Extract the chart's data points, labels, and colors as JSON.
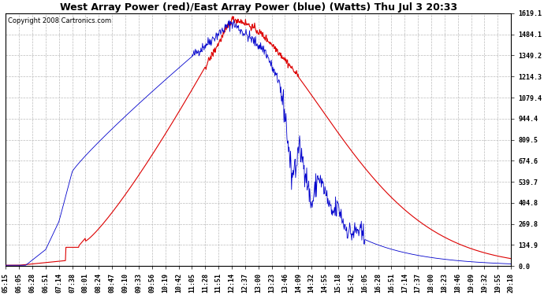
{
  "title": "West Array Power (red)/East Array Power (blue) (Watts) Thu Jul 3 20:33",
  "copyright": "Copyright 2008 Cartronics.com",
  "ymax": 1619.1,
  "yticks": [
    0.0,
    134.9,
    269.8,
    404.8,
    539.7,
    674.6,
    809.5,
    944.4,
    1079.4,
    1214.3,
    1349.2,
    1484.1,
    1619.1
  ],
  "ytick_labels": [
    "0.0",
    "134.9",
    "269.8",
    "404.8",
    "539.7",
    "674.6",
    "809.5",
    "944.4",
    "1079.4",
    "1214.3",
    "1349.2",
    "1484.1",
    "1619.1"
  ],
  "xtick_labels": [
    "05:15",
    "06:05",
    "06:28",
    "06:51",
    "07:14",
    "07:38",
    "08:01",
    "08:24",
    "08:47",
    "09:10",
    "09:33",
    "09:56",
    "10:19",
    "10:42",
    "11:05",
    "11:28",
    "11:51",
    "12:14",
    "12:37",
    "13:00",
    "13:23",
    "13:46",
    "14:09",
    "14:32",
    "14:55",
    "15:18",
    "15:42",
    "16:05",
    "16:28",
    "16:51",
    "17:14",
    "17:37",
    "18:00",
    "18:23",
    "18:46",
    "19:09",
    "19:32",
    "19:55",
    "20:18"
  ],
  "n_ticks": 39,
  "bg_color": "#ffffff",
  "plot_bg_color": "#ffffff",
  "grid_color": "#bbbbbb",
  "red_color": "#dd0000",
  "blue_color": "#0000cc",
  "title_fontsize": 9,
  "copyright_fontsize": 6,
  "tick_fontsize": 6
}
